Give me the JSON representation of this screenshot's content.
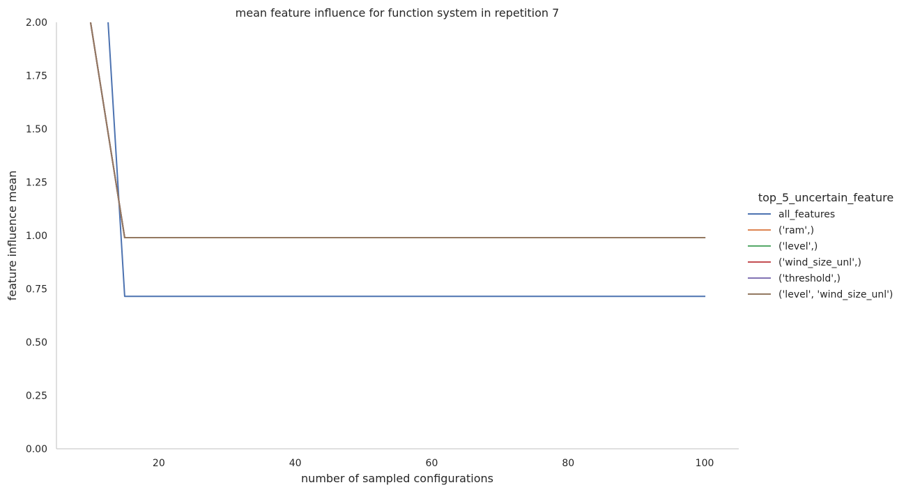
{
  "chart_data": {
    "type": "line",
    "title": "mean feature influence for function system in repetition 7",
    "xlabel": "number of sampled configurations",
    "ylabel": "feature influence mean",
    "xlim": [
      5,
      105
    ],
    "ylim": [
      0,
      2.0
    ],
    "x_ticks": [
      20,
      40,
      60,
      80,
      100
    ],
    "y_ticks": [
      0.0,
      0.25,
      0.5,
      0.75,
      1.0,
      1.25,
      1.5,
      1.75,
      2.0
    ],
    "y_tick_labels": [
      "0.00",
      "0.25",
      "0.50",
      "0.75",
      "1.00",
      "1.25",
      "1.50",
      "1.75",
      "2.00"
    ],
    "grid": false,
    "legend": {
      "title": "top_5_uncertain_feature",
      "placement": "right"
    },
    "series": [
      {
        "name": "all_features",
        "color": "#4c72b0",
        "x": [
          10,
          15,
          100
        ],
        "y": [
          3.36,
          0.715,
          0.715
        ]
      },
      {
        "name": "('ram',)",
        "color": "#dd8452",
        "x": [
          10,
          15,
          100
        ],
        "y": [
          2.0,
          0.99,
          0.99
        ]
      },
      {
        "name": "('level',)",
        "color": "#55a868",
        "x": [
          10,
          15,
          100
        ],
        "y": [
          2.0,
          0.99,
          0.99
        ]
      },
      {
        "name": "('wind_size_unl',)",
        "color": "#c44e52",
        "x": [
          10,
          15,
          100
        ],
        "y": [
          2.0,
          0.99,
          0.99
        ]
      },
      {
        "name": "('threshold',)",
        "color": "#8172b3",
        "x": [
          10,
          15,
          100
        ],
        "y": [
          2.0,
          0.99,
          0.99
        ]
      },
      {
        "name": "('level', 'wind_size_unl')",
        "color": "#937860",
        "x": [
          10,
          15,
          100
        ],
        "y": [
          2.0,
          0.99,
          0.99
        ]
      }
    ]
  }
}
